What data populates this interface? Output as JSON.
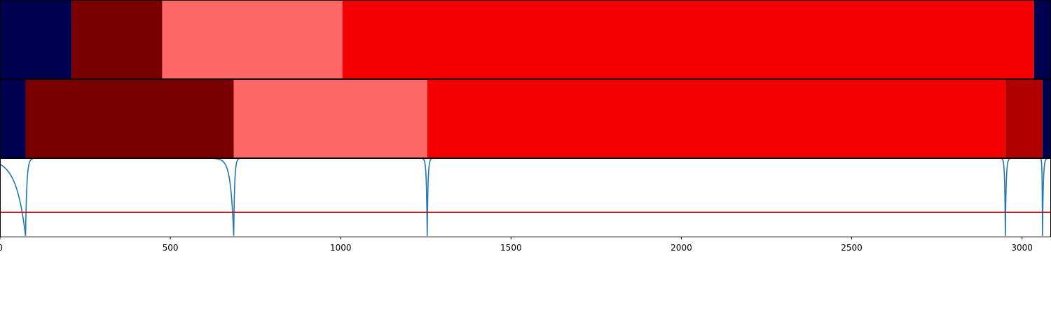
{
  "chart_data": {
    "type": "segmentation-timeline",
    "xlim": [
      0,
      3085
    ],
    "xticks": [
      0,
      500,
      1000,
      1500,
      2000,
      2500,
      3000
    ],
    "xtick_labels": [
      "0",
      "500",
      "1000",
      "1500",
      "2000",
      "2500",
      "3000"
    ],
    "tracks": [
      {
        "segments": [
          {
            "start": 0,
            "end": 210,
            "color": "#000050"
          },
          {
            "start": 210,
            "end": 476,
            "color": "#7a0000"
          },
          {
            "start": 476,
            "end": 1005,
            "color": "#ff6666"
          },
          {
            "start": 1005,
            "end": 3035,
            "color": "#f50000"
          },
          {
            "start": 3035,
            "end": 3085,
            "color": "#000050"
          }
        ]
      },
      {
        "segments": [
          {
            "start": 0,
            "end": 75,
            "color": "#000050"
          },
          {
            "start": 75,
            "end": 686,
            "color": "#7a0000"
          },
          {
            "start": 686,
            "end": 1254,
            "color": "#ff6666"
          },
          {
            "start": 1254,
            "end": 2951,
            "color": "#f50000"
          },
          {
            "start": 2951,
            "end": 3060,
            "color": "#b00000"
          },
          {
            "start": 3060,
            "end": 3085,
            "color": "#000050"
          }
        ]
      }
    ],
    "signal": {
      "color": "#1f77b4",
      "ylim": [
        0,
        1
      ],
      "baseline": 1.0,
      "dips": [
        {
          "x": 75,
          "depth": 0.99,
          "left_width": 60,
          "right_width": 8
        },
        {
          "x": 686,
          "depth": 0.99,
          "left_width": 20,
          "right_width": 6
        },
        {
          "x": 1254,
          "depth": 0.99,
          "left_width": 5,
          "right_width": 5
        },
        {
          "x": 2951,
          "depth": 0.99,
          "left_width": 4,
          "right_width": 5
        },
        {
          "x": 3060,
          "depth": 0.99,
          "left_width": 2,
          "right_width": 5
        }
      ],
      "threshold": 0.31,
      "threshold_color": "#e8000b"
    }
  }
}
